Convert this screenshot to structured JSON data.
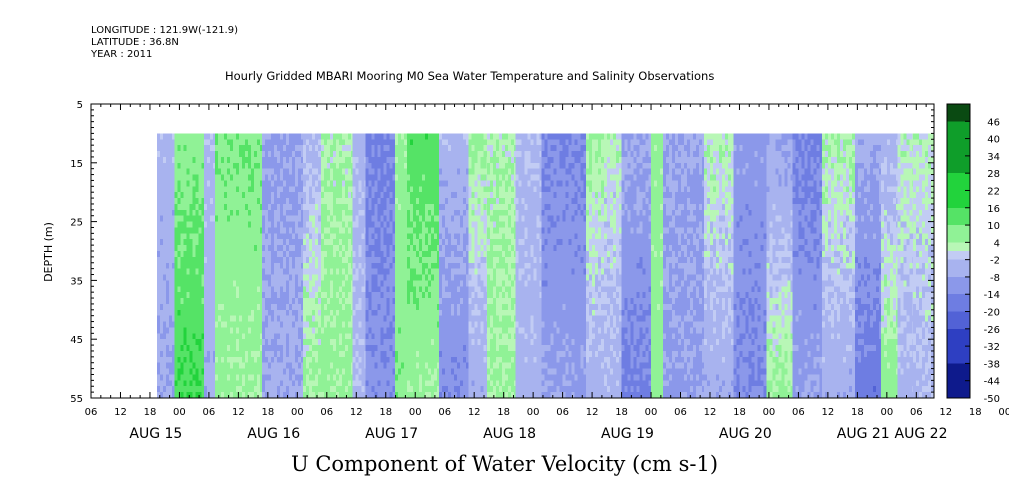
{
  "header": {
    "longitude": "LONGITUDE : 121.9W(-121.9)",
    "latitude": "LATITUDE : 36.8N",
    "year": "YEAR : 2011"
  },
  "chart_data": {
    "type": "heatmap",
    "title": "Hourly Gridded MBARI Mooring M0 Sea Water Temperature and Salinity Observations",
    "xlabel": "U Component of Water Velocity (cm s-1)",
    "ylabel": "DEPTH (m)",
    "ylim": [
      5,
      55
    ],
    "y_inverted": true,
    "y_ticks": [
      5,
      15,
      25,
      35,
      45,
      55
    ],
    "x_hour_ticks": [
      "06",
      "12",
      "18",
      "00",
      "06",
      "12",
      "18",
      "00",
      "06",
      "12",
      "18",
      "00",
      "06",
      "12",
      "18",
      "00",
      "06",
      "12",
      "18",
      "00",
      "06",
      "12",
      "18",
      "00",
      "06",
      "12",
      "18",
      "00",
      "06",
      "12",
      "18",
      "00",
      "06"
    ],
    "x_day_labels": [
      "AUG 15",
      "AUG 16",
      "AUG 17",
      "AUG 18",
      "AUG 19",
      "AUG 20",
      "AUG 21",
      "AUG 22"
    ],
    "data_depth_range_m": [
      10,
      55
    ],
    "colorbar": {
      "labels": [
        "46",
        "40",
        "34",
        "28",
        "22",
        "16",
        "10",
        "4",
        "-2",
        "-8",
        "-14",
        "-20",
        "-26",
        "-32",
        "-38",
        "-44",
        "-50"
      ],
      "min": -50,
      "max": 52,
      "step": 3
    },
    "velocity_bands": [
      {
        "day_start": 0.56,
        "day_end": 0.71,
        "surface": -4,
        "bottom": -8
      },
      {
        "day_start": 0.71,
        "day_end": 0.96,
        "surface": 7,
        "bottom": 16
      },
      {
        "day_start": 0.96,
        "day_end": 1.05,
        "surface": -3,
        "bottom": -6
      },
      {
        "day_start": 1.05,
        "day_end": 1.45,
        "surface": 9,
        "bottom": 5
      },
      {
        "day_start": 1.45,
        "day_end": 1.8,
        "surface": -9,
        "bottom": -7
      },
      {
        "day_start": 1.8,
        "day_end": 1.95,
        "surface": -4,
        "bottom": 5
      },
      {
        "day_start": 1.95,
        "day_end": 2.22,
        "surface": 3,
        "bottom": 6
      },
      {
        "day_start": 2.22,
        "day_end": 2.33,
        "surface": -4,
        "bottom": -3
      },
      {
        "day_start": 2.33,
        "day_end": 2.58,
        "surface": -16,
        "bottom": -12
      },
      {
        "day_start": 2.58,
        "day_end": 2.68,
        "surface": 6,
        "bottom": 8
      },
      {
        "day_start": 2.68,
        "day_end": 2.95,
        "surface": 14,
        "bottom": 5
      },
      {
        "day_start": 2.95,
        "day_end": 3.2,
        "surface": -4,
        "bottom": -13
      },
      {
        "day_start": 3.2,
        "day_end": 3.36,
        "surface": 5,
        "bottom": -6
      },
      {
        "day_start": 3.36,
        "day_end": 3.6,
        "surface": 3,
        "bottom": 5
      },
      {
        "day_start": 3.6,
        "day_end": 3.82,
        "surface": -3,
        "bottom": -5
      },
      {
        "day_start": 3.82,
        "day_end": 4.2,
        "surface": -14,
        "bottom": -9
      },
      {
        "day_start": 4.2,
        "day_end": 4.35,
        "surface": 5,
        "bottom": -5
      },
      {
        "day_start": 4.35,
        "day_end": 4.5,
        "surface": 2,
        "bottom": -4
      },
      {
        "day_start": 4.5,
        "day_end": 4.75,
        "surface": -7,
        "bottom": -16
      },
      {
        "day_start": 4.75,
        "day_end": 4.85,
        "surface": 6,
        "bottom": 7
      },
      {
        "day_start": 4.85,
        "day_end": 5.2,
        "surface": -8,
        "bottom": -9
      },
      {
        "day_start": 5.2,
        "day_end": 5.45,
        "surface": 3,
        "bottom": -6
      },
      {
        "day_start": 5.45,
        "day_end": 5.73,
        "surface": -10,
        "bottom": -14
      },
      {
        "day_start": 5.73,
        "day_end": 5.95,
        "surface": -8,
        "bottom": 5
      },
      {
        "day_start": 5.95,
        "day_end": 6.2,
        "surface": -15,
        "bottom": -9
      },
      {
        "day_start": 6.2,
        "day_end": 6.48,
        "surface": 4,
        "bottom": -6
      },
      {
        "day_start": 6.48,
        "day_end": 6.7,
        "surface": -6,
        "bottom": -18
      },
      {
        "day_start": 6.7,
        "day_end": 6.84,
        "surface": -5,
        "bottom": 7
      },
      {
        "day_start": 6.84,
        "day_end": 6.97,
        "surface": 3,
        "bottom": -5
      },
      {
        "day_start": 6.97,
        "day_end": 7.15,
        "surface": 2,
        "bottom": -3
      }
    ]
  }
}
